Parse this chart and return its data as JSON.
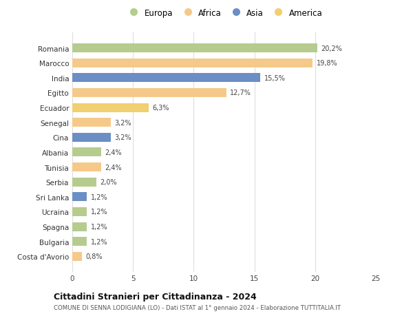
{
  "categories": [
    "Costa d'Avorio",
    "Bulgaria",
    "Spagna",
    "Ucraina",
    "Sri Lanka",
    "Serbia",
    "Tunisia",
    "Albania",
    "Cina",
    "Senegal",
    "Ecuador",
    "Egitto",
    "India",
    "Marocco",
    "Romania"
  ],
  "values": [
    0.8,
    1.2,
    1.2,
    1.2,
    1.2,
    2.0,
    2.4,
    2.4,
    3.2,
    3.2,
    6.3,
    12.7,
    15.5,
    19.8,
    20.2
  ],
  "colors": [
    "#f5c98a",
    "#b5cc8e",
    "#b5cc8e",
    "#b5cc8e",
    "#6b8ec4",
    "#b5cc8e",
    "#f5c98a",
    "#b5cc8e",
    "#6b8ec4",
    "#f5c98a",
    "#f0d070",
    "#f5c98a",
    "#6b8ec4",
    "#f5c98a",
    "#b5cc8e"
  ],
  "labels": [
    "0,8%",
    "1,2%",
    "1,2%",
    "1,2%",
    "1,2%",
    "2,0%",
    "2,4%",
    "2,4%",
    "3,2%",
    "3,2%",
    "6,3%",
    "12,7%",
    "15,5%",
    "19,8%",
    "20,2%"
  ],
  "legend": [
    {
      "label": "Europa",
      "color": "#b5cc8e"
    },
    {
      "label": "Africa",
      "color": "#f5c98a"
    },
    {
      "label": "Asia",
      "color": "#6b8ec4"
    },
    {
      "label": "America",
      "color": "#f0d070"
    }
  ],
  "title": "Cittadini Stranieri per Cittadinanza - 2024",
  "subtitle": "COMUNE DI SENNA LODIGIANA (LO) - Dati ISTAT al 1° gennaio 2024 - Elaborazione TUTTITALIA.IT",
  "xlim": [
    0,
    25
  ],
  "xticks": [
    0,
    5,
    10,
    15,
    20,
    25
  ],
  "background_color": "#ffffff",
  "grid_color": "#dddddd"
}
